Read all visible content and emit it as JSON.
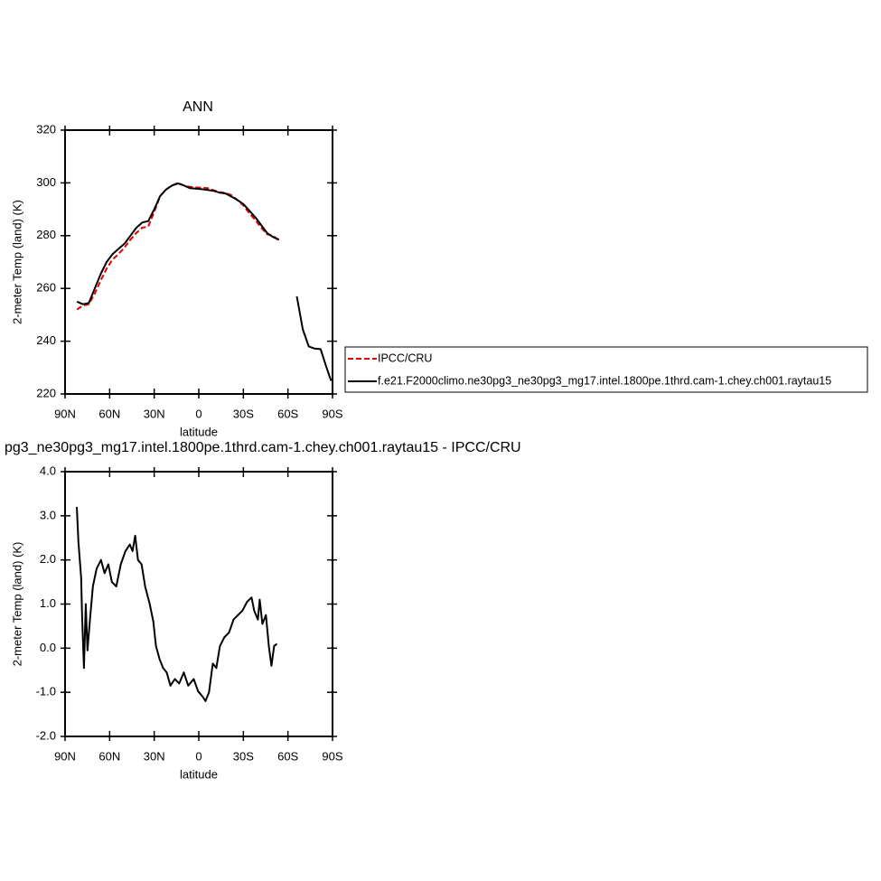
{
  "chart_data": [
    {
      "type": "line",
      "title": "ANN",
      "x_label": "latitude",
      "y_label": "2-meter Temp (land) (K)",
      "x": [
        82,
        78,
        74,
        70,
        66,
        62,
        58,
        54,
        50,
        46,
        42,
        38,
        34,
        30,
        26,
        22,
        18,
        14,
        10,
        6,
        2,
        -2,
        -6,
        -10,
        -14,
        -18,
        -22,
        -26,
        -30,
        -34,
        -38,
        -42,
        -46,
        -50,
        -54,
        -58,
        -62,
        -66,
        -70,
        -74,
        -78,
        -82,
        -86,
        -89
      ],
      "series": [
        {
          "name": "IPCC/CRU",
          "color": "#e00000",
          "dashed": true,
          "values": [
            252,
            253.5,
            254,
            258,
            263,
            267.5,
            271,
            273,
            275.5,
            278.5,
            281,
            283,
            283.5,
            289,
            295,
            297.5,
            299,
            300,
            299,
            298.5,
            298.3,
            298.2,
            298,
            297.2,
            296.5,
            296.2,
            295.3,
            293.5,
            291.5,
            288.5,
            286,
            283,
            280.5,
            280,
            278,
            null,
            null,
            null,
            null,
            null,
            null,
            null,
            null,
            null
          ]
        },
        {
          "name": "f.e21.F2000climo.ne30pg3_ne30pg3_mg17.intel.1800pe.1thrd.cam-1.chey.ch001.raytau15",
          "color": "#000000",
          "dashed": false,
          "values": [
            255,
            254,
            254.5,
            260,
            265.5,
            270,
            273,
            275,
            277,
            280,
            283,
            285,
            285.5,
            290,
            295,
            297.5,
            299,
            299.8,
            299,
            298,
            297.8,
            297.6,
            297.3,
            297,
            296.3,
            296,
            294.8,
            293.5,
            292,
            289.5,
            287,
            284,
            281,
            279.5,
            278.5,
            null,
            null,
            257,
            244.5,
            238,
            237.2,
            237,
            230,
            225
          ]
        }
      ],
      "xlim": [
        90,
        -90
      ],
      "xticks": [
        {
          "value": 90,
          "label": "90N"
        },
        {
          "value": 60,
          "label": "60N"
        },
        {
          "value": 30,
          "label": "30N"
        },
        0,
        {
          "value": -30,
          "label": "30S"
        },
        {
          "value": -60,
          "label": "60S"
        },
        {
          "value": -90,
          "label": "90S"
        }
      ],
      "ylim": [
        220,
        320
      ],
      "yticks": [
        220,
        240,
        260,
        280,
        300,
        320
      ],
      "legend": "right"
    },
    {
      "type": "line",
      "title": "pg3_ne30pg3_mg17.intel.1800pe.1thrd.cam-1.chey.ch001.raytau15 - IPCC/CRU",
      "x_label": "latitude",
      "y_label": "2-meter Temp (land) (K)",
      "x": [
        82.1,
        81,
        79.2,
        78.5,
        77.3,
        76.1,
        74.9,
        73.1,
        71.3,
        68.8,
        65.8,
        63.4,
        60.9,
        58.5,
        55.5,
        52.5,
        49.4,
        46.4,
        44.6,
        42.8,
        40.9,
        38.5,
        36.1,
        33,
        30.6,
        28.8,
        26.4,
        24,
        21.6,
        19.1,
        16.1,
        13.2,
        10.1,
        7.1,
        3.4,
        0.4,
        -2.6,
        -4.5,
        -6.9,
        -9.4,
        -11.8,
        -14.2,
        -17.3,
        -20.3,
        -23.4,
        -26.4,
        -29.4,
        -32.5,
        -35.5,
        -37.3,
        -39.8,
        -41,
        -42.8,
        -45.2,
        -47.1,
        -48.9,
        -50.7,
        -52.6
      ],
      "series": [
        {
          "color": "#000000",
          "dashed": false,
          "values": [
            3.2,
            2.4,
            1.6,
            0.7,
            -0.45,
            1.0,
            -0.05,
            0.7,
            1.4,
            1.8,
            2.0,
            1.7,
            1.9,
            1.5,
            1.4,
            1.9,
            2.2,
            2.35,
            2.2,
            2.55,
            2.0,
            1.9,
            1.4,
            1.0,
            0.6,
            0.05,
            -0.25,
            -0.45,
            -0.55,
            -0.85,
            -0.7,
            -0.8,
            -0.55,
            -0.85,
            -0.7,
            -0.98,
            -1.1,
            -1.2,
            -1.0,
            -0.35,
            -0.45,
            0.05,
            0.25,
            0.35,
            0.65,
            0.75,
            0.85,
            1.05,
            1.15,
            0.85,
            0.65,
            1.1,
            0.55,
            0.75,
            0.05,
            -0.4,
            0.05,
            0.1
          ]
        }
      ],
      "xlim": [
        90,
        -90
      ],
      "xticks": [
        {
          "value": 90,
          "label": "90N"
        },
        {
          "value": 60,
          "label": "60N"
        },
        {
          "value": 30,
          "label": "30N"
        },
        0,
        {
          "value": -30,
          "label": "30S"
        },
        {
          "value": -60,
          "label": "60S"
        },
        {
          "value": -90,
          "label": "90S"
        }
      ],
      "ylim": [
        -2,
        4
      ],
      "yticks": [
        {
          "value": -2,
          "label": "-2.0"
        },
        {
          "value": -1,
          "label": "-1.0"
        },
        {
          "value": 0,
          "label": "0.0"
        },
        {
          "value": 1,
          "label": "1.0"
        },
        {
          "value": 2,
          "label": "2.0"
        },
        {
          "value": 3,
          "label": "3.0"
        },
        {
          "value": 4,
          "label": "4.0"
        }
      ]
    }
  ]
}
